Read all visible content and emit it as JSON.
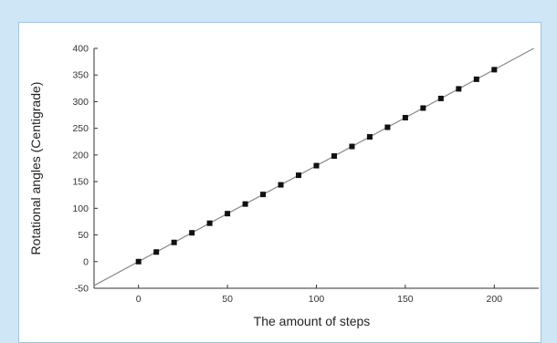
{
  "chart_data": {
    "type": "scatter",
    "xlabel": "The amount of steps",
    "ylabel": "Rotational angles (Centigrade)",
    "xlim": [
      -25,
      225
    ],
    "ylim": [
      -50,
      400
    ],
    "x_ticks": [
      0,
      50,
      100,
      150,
      200
    ],
    "y_ticks": [
      -50,
      0,
      50,
      100,
      150,
      200,
      250,
      300,
      350,
      400
    ],
    "grid": false,
    "legend": "none",
    "series": [
      {
        "marker": "square",
        "color": "#111111",
        "points": [
          [
            0,
            0
          ],
          [
            10,
            18
          ],
          [
            20,
            36
          ],
          [
            30,
            54
          ],
          [
            40,
            72
          ],
          [
            50,
            90
          ],
          [
            60,
            108
          ],
          [
            70,
            126
          ],
          [
            80,
            144
          ],
          [
            90,
            162
          ],
          [
            100,
            180
          ],
          [
            110,
            198
          ],
          [
            120,
            216
          ],
          [
            130,
            234
          ],
          [
            140,
            252
          ],
          [
            150,
            270
          ],
          [
            160,
            288
          ],
          [
            170,
            306
          ],
          [
            180,
            324
          ],
          [
            190,
            342
          ],
          [
            200,
            360
          ]
        ]
      }
    ],
    "fit_line": {
      "slope": 1.8,
      "intercept": 0,
      "color": "#888888"
    }
  }
}
